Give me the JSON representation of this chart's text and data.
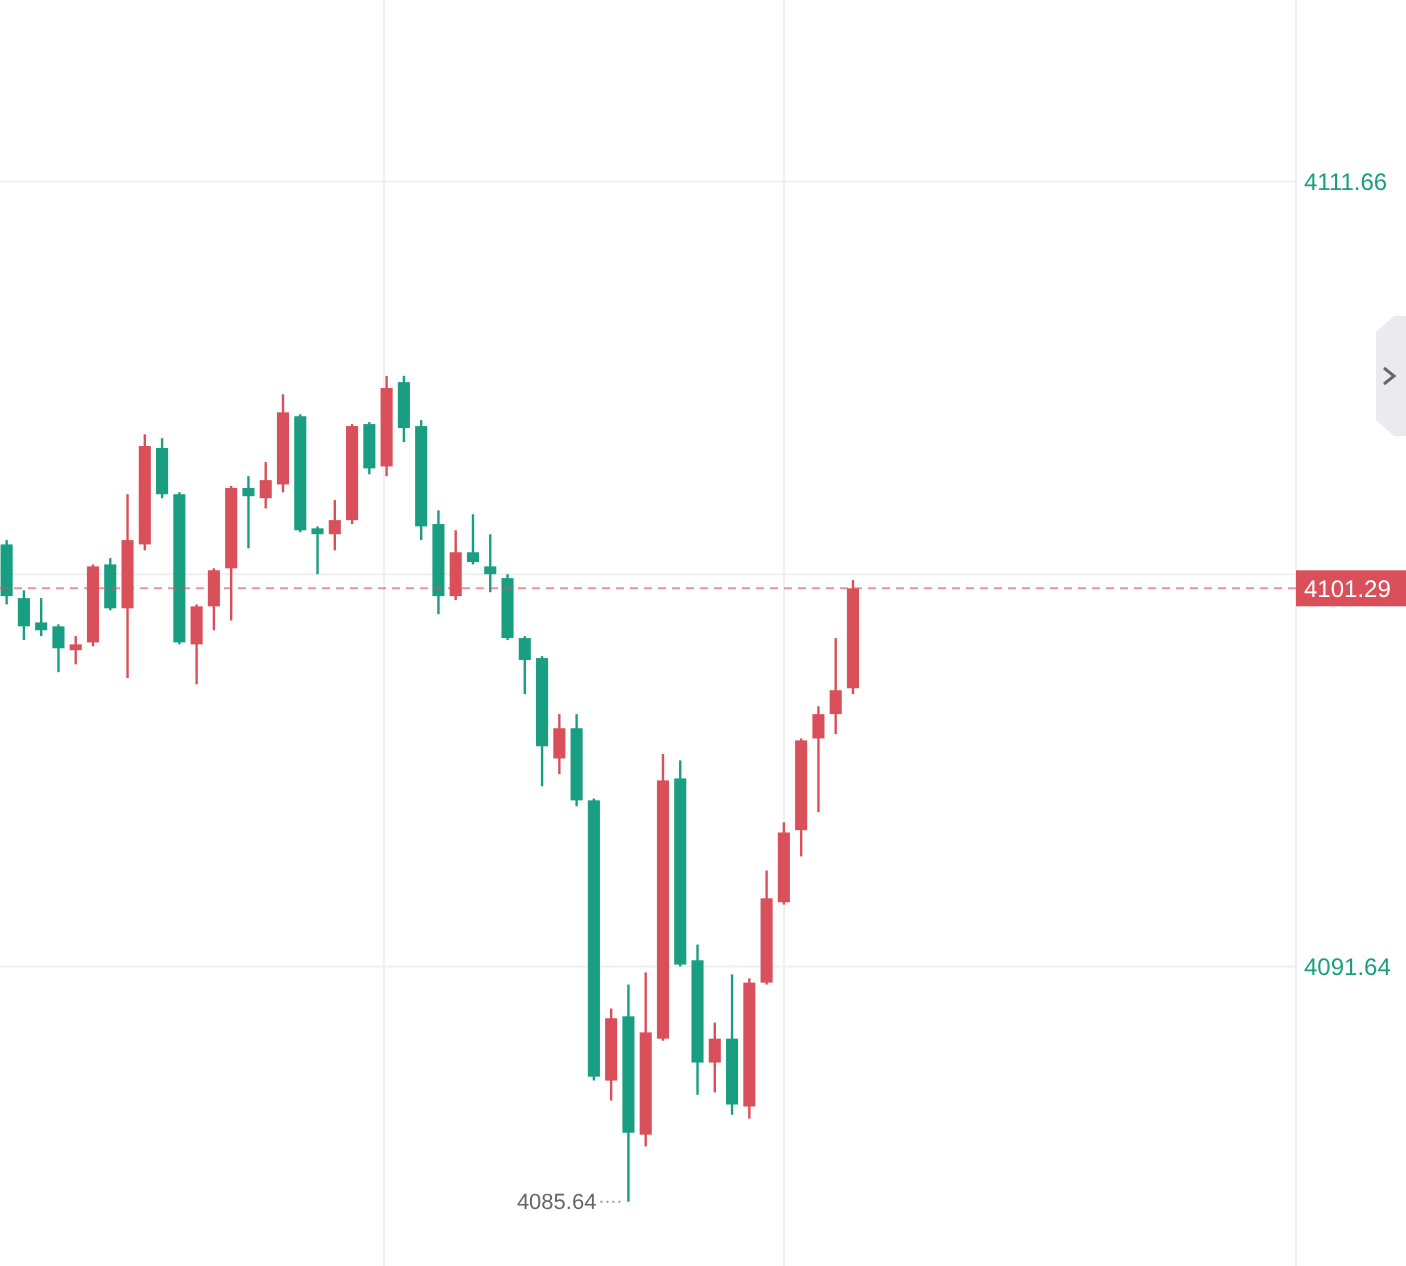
{
  "chart_data": {
    "type": "candlestick",
    "categories": [
      null,
      null,
      null,
      null,
      null,
      null,
      null,
      null,
      null,
      null,
      null,
      null,
      null,
      null,
      null,
      null,
      null,
      null,
      null,
      null,
      null,
      null,
      null,
      null,
      null,
      null,
      null,
      null,
      null,
      null,
      null,
      null,
      null,
      null,
      null,
      null,
      null,
      null,
      null,
      null,
      null,
      null,
      null,
      null,
      null,
      null,
      null,
      null,
      null,
      null,
      null,
      null,
      null,
      null,
      null,
      null,
      null,
      null,
      null,
      null,
      null,
      null,
      null,
      null,
      null,
      null,
      null,
      null,
      null,
      null,
      null,
      null,
      null,
      null,
      null
    ],
    "ohlc": [
      [
        4102.41,
        4102.52,
        4100.88,
        4101.09
      ],
      [
        4101.04,
        4101.24,
        4099.97,
        4100.32
      ],
      [
        4100.42,
        4101.04,
        4100.07,
        4100.22
      ],
      [
        4100.32,
        4100.37,
        4099.15,
        4099.76
      ],
      [
        4099.71,
        4100.07,
        4099.35,
        4099.86
      ],
      [
        4099.91,
        4101.9,
        4099.81,
        4101.85
      ],
      [
        4101.9,
        4102.06,
        4100.73,
        4100.78
      ],
      [
        4100.78,
        4103.69,
        4099.0,
        4102.52
      ],
      [
        4102.41,
        4105.22,
        4102.26,
        4104.92
      ],
      [
        4104.87,
        4105.12,
        4103.59,
        4103.69
      ],
      [
        4103.69,
        4103.74,
        4099.86,
        4099.91
      ],
      [
        4099.86,
        4100.88,
        4098.84,
        4100.83
      ],
      [
        4100.83,
        4101.8,
        4100.22,
        4101.75
      ],
      [
        4101.8,
        4103.9,
        4100.47,
        4103.85
      ],
      [
        4103.85,
        4104.15,
        4102.31,
        4103.64
      ],
      [
        4103.59,
        4104.51,
        4103.33,
        4104.05
      ],
      [
        4103.94,
        4106.24,
        4103.74,
        4105.78
      ],
      [
        4105.68,
        4105.73,
        4102.72,
        4102.77
      ],
      [
        4102.82,
        4102.87,
        4101.65,
        4102.67
      ],
      [
        4102.67,
        4103.54,
        4102.26,
        4103.03
      ],
      [
        4103.03,
        4105.48,
        4102.93,
        4105.43
      ],
      [
        4105.48,
        4105.53,
        4104.2,
        4104.35
      ],
      [
        4104.4,
        4106.71,
        4104.15,
        4106.4
      ],
      [
        4106.55,
        4106.71,
        4105.02,
        4105.38
      ],
      [
        4105.43,
        4105.58,
        4102.52,
        4102.87
      ],
      [
        4102.93,
        4103.28,
        4100.63,
        4101.09
      ],
      [
        4101.09,
        4102.77,
        4100.99,
        4102.21
      ],
      [
        4102.21,
        4103.18,
        4101.9,
        4101.96
      ],
      [
        4101.85,
        4102.67,
        4101.19,
        4101.65
      ],
      [
        4101.55,
        4101.65,
        4099.97,
        4100.02
      ],
      [
        4100.02,
        4100.07,
        4098.59,
        4099.46
      ],
      [
        4099.51,
        4099.56,
        4096.24,
        4097.26
      ],
      [
        4096.95,
        4098.08,
        4096.55,
        4097.72
      ],
      [
        4097.72,
        4098.08,
        4095.73,
        4095.88
      ],
      [
        4095.88,
        4095.93,
        4088.73,
        4088.83
      ],
      [
        4088.73,
        4090.57,
        4088.22,
        4090.32
      ],
      [
        4090.37,
        4091.18,
        4085.64,
        4087.4
      ],
      [
        4087.35,
        4091.49,
        4087.05,
        4089.96
      ],
      [
        4089.8,
        4097.06,
        4089.75,
        4096.39
      ],
      [
        4096.44,
        4096.9,
        4091.64,
        4091.69
      ],
      [
        4091.8,
        4092.2,
        4088.37,
        4089.19
      ],
      [
        4089.19,
        4090.21,
        4088.43,
        4089.8
      ],
      [
        4089.8,
        4091.44,
        4087.86,
        4088.12
      ],
      [
        4088.07,
        4091.34,
        4087.76,
        4091.23
      ],
      [
        4091.23,
        4094.09,
        4091.18,
        4093.38
      ],
      [
        4093.28,
        4095.32,
        4093.22,
        4095.06
      ],
      [
        4095.12,
        4097.46,
        4094.45,
        4097.41
      ],
      [
        4097.46,
        4098.28,
        4095.58,
        4098.08
      ],
      [
        4098.08,
        4100.02,
        4097.57,
        4098.69
      ],
      [
        4098.74,
        4101.5,
        4098.59,
        4101.29
      ],
      null,
      null,
      null,
      null,
      null,
      null,
      null,
      null,
      null,
      null,
      null,
      null,
      null,
      null,
      null,
      null,
      null,
      null,
      null,
      null,
      null,
      null,
      null,
      null,
      null
    ],
    "colors": [
      "#1a9e82",
      "#1a9e82",
      "#1a9e82",
      "#1a9e82",
      "#d9505b",
      "#d9505b",
      "#1a9e82",
      "#d9505b",
      "#d9505b",
      "#1a9e82",
      "#1a9e82",
      "#d9505b",
      "#d9505b",
      "#d9505b",
      "#1a9e82",
      "#d9505b",
      "#d9505b",
      "#1a9e82",
      "#1a9e82",
      "#d9505b",
      "#d9505b",
      "#1a9e82",
      "#d9505b",
      "#1a9e82",
      "#1a9e82",
      "#1a9e82",
      "#d9505b",
      "#1a9e82",
      "#1a9e82",
      "#1a9e82",
      "#1a9e82",
      "#1a9e82",
      "#d9505b",
      "#1a9e82",
      "#1a9e82",
      "#d9505b",
      "#1a9e82",
      "#d9505b",
      "#d9505b",
      "#1a9e82",
      "#1a9e82",
      "#d9505b",
      "#1a9e82",
      "#d9505b",
      "#d9505b",
      "#d9505b",
      "#d9505b",
      "#d9505b",
      "#d9505b",
      "#d9505b",
      null,
      null,
      null,
      null,
      null,
      null,
      null,
      null,
      null,
      null,
      null,
      null,
      null,
      null,
      null,
      null,
      null,
      null,
      null,
      null,
      null,
      null,
      null,
      null,
      null
    ],
    "ylim": [
      4084.0,
      4116.3
    ],
    "yticks": [
      4111.66,
      {
        "value": 4101.65,
        "label": null
      },
      4091.64
    ],
    "grid": true,
    "ref_lines": [
      {
        "axis": "y",
        "value": 4101.29,
        "label": "4101.29",
        "color": "#d9505b",
        "line_style": "dashed"
      }
    ],
    "annotations": [
      "4085.64"
    ]
  }
}
